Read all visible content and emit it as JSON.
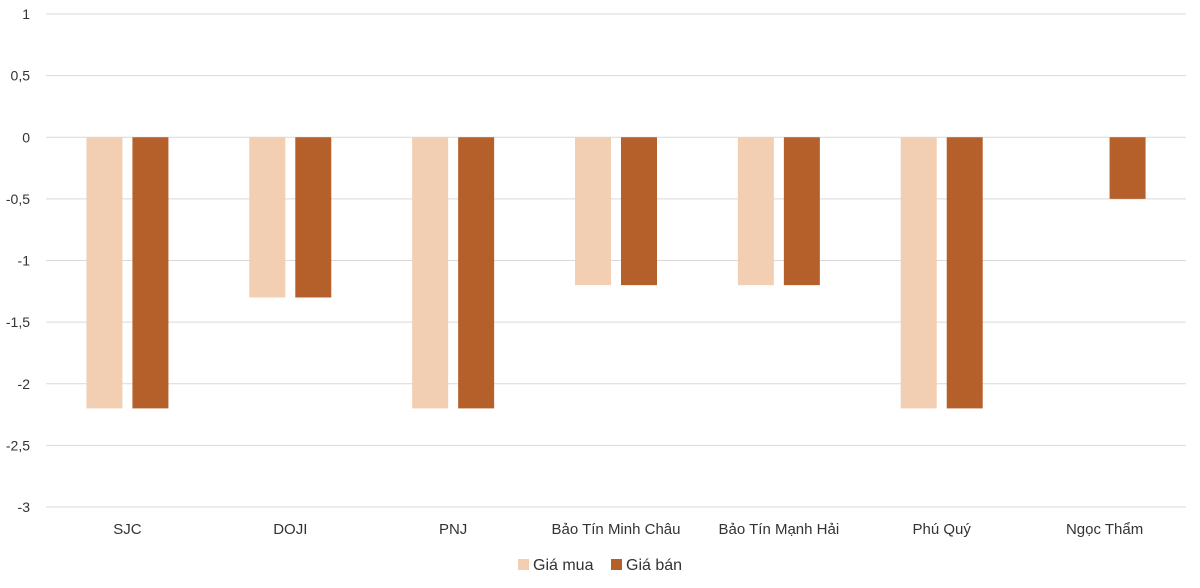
{
  "chart_data": {
    "type": "bar",
    "categories": [
      "SJC",
      "DOJI",
      "PNJ",
      "Bảo Tín Minh Châu",
      "Bảo Tín Mạnh Hải",
      "Phú Quý",
      "Ngọc Thẩm"
    ],
    "series": [
      {
        "name": "Giá mua",
        "color": "#F2CFB3",
        "values": [
          -2.2,
          -1.3,
          -2.2,
          -1.2,
          -1.2,
          -2.2,
          0
        ]
      },
      {
        "name": "Giá bán",
        "color": "#B5602B",
        "values": [
          -2.2,
          -1.3,
          -2.2,
          -1.2,
          -1.2,
          -2.2,
          -0.5
        ]
      }
    ],
    "ylim": [
      -3,
      1
    ],
    "yticks": [
      1,
      0.5,
      0,
      -0.5,
      -1,
      -1.5,
      -2,
      -2.5,
      -3
    ],
    "ytick_labels": [
      "1",
      "0,5",
      "0",
      "-0,5",
      "-1",
      "-1,5",
      "-2",
      "-2,5",
      "-3"
    ],
    "grid": true,
    "legend_position": "bottom-center",
    "gridline_color": "#D9D9D9"
  }
}
